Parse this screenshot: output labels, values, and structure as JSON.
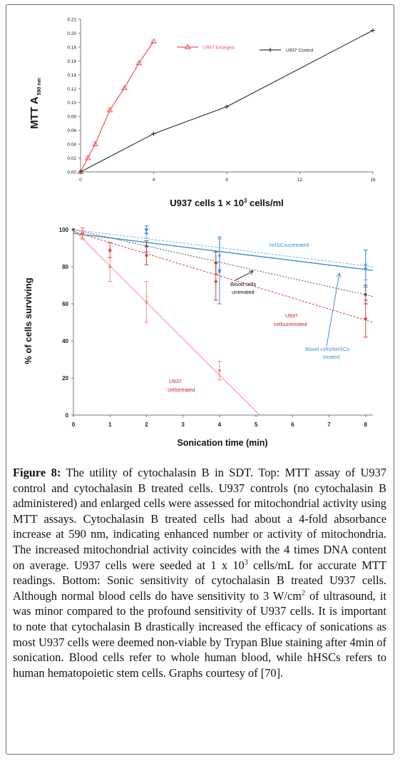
{
  "chart_data": [
    {
      "type": "line",
      "title": "",
      "xlabel": "U937 cells 1 × 10",
      "xlabel_sup": "3",
      "xlabel_tail": " cells/ml",
      "ylabel": "MTT A",
      "ylabel_sub": "590 nm",
      "xlim": [
        0,
        16
      ],
      "ylim": [
        0,
        0.22
      ],
      "x_ticks": [
        "0",
        "4",
        "8",
        "12",
        "16"
      ],
      "y_ticks": [
        "0.00",
        "0.02",
        "0.04",
        "0.06",
        "0.08",
        "0.10",
        "0.12",
        "0.14",
        "0.16",
        "0.18",
        "0.20",
        "0.22"
      ],
      "legend_position": "top-right",
      "series": [
        {
          "name": "U937 Enlarged",
          "color": "#f0525c",
          "marker": "triangle",
          "x": [
            0,
            0.4,
            0.8,
            1.6,
            2.4,
            3.2,
            4.0
          ],
          "y": [
            0.0,
            0.02,
            0.04,
            0.089,
            0.121,
            0.157,
            0.188
          ]
        },
        {
          "name": "U937 Control",
          "color": "#3a3a3a",
          "marker": "plus",
          "x": [
            0,
            4,
            8,
            16
          ],
          "y": [
            0.0,
            0.055,
            0.094,
            0.204
          ]
        }
      ]
    },
    {
      "type": "scatter",
      "title": "",
      "xlabel": "Sonication time (min)",
      "ylabel": "% of cells surviving",
      "xlim": [
        0,
        8.2
      ],
      "ylim": [
        0,
        100
      ],
      "x_ticks": [
        "0",
        "1",
        "2",
        "3",
        "4",
        "5",
        "6",
        "7",
        "8"
      ],
      "y_ticks": [
        "0",
        "20",
        "40",
        "60",
        "80",
        "100"
      ],
      "series": [
        {
          "name": "hHSCsuntreated",
          "color": "#7aaee6",
          "points": [
            {
              "x": 0,
              "y": 100,
              "err": 0
            },
            {
              "x": 2,
              "y": 98,
              "err": 2.5
            },
            {
              "x": 4,
              "y": 86,
              "err": 9
            },
            {
              "x": 8,
              "y": 81,
              "err": 8
            }
          ],
          "trend": [
            [
              0,
              100
            ],
            [
              8.2,
              80
            ]
          ]
        },
        {
          "name": "Blood cells/hHSCs treated",
          "color": "#3f8fdc",
          "points": [
            {
              "x": 0,
              "y": 100,
              "err": 0
            },
            {
              "x": 2,
              "y": 100,
              "err": 2
            },
            {
              "x": 4,
              "y": 78,
              "err": 18
            },
            {
              "x": 8,
              "y": 79,
              "err": 10
            }
          ],
          "trend": [
            [
              0,
              98
            ],
            [
              8.2,
              78
            ]
          ]
        },
        {
          "name": "Blood cells untreated",
          "color": "#555555",
          "points": [
            {
              "x": 0,
              "y": 100,
              "err": 0
            },
            {
              "x": 2,
              "y": 91,
              "err": 3
            },
            {
              "x": 3.9,
              "y": 82,
              "err": 6
            },
            {
              "x": 8,
              "y": 65,
              "err": 5
            }
          ],
          "trend": [
            [
              0,
              100
            ],
            [
              8.2,
              64
            ]
          ]
        },
        {
          "name": "U937 cellsuntreated",
          "color": "#e23a3a",
          "points": [
            {
              "x": 0.25,
              "y": 98,
              "err": 3
            },
            {
              "x": 1,
              "y": 89,
              "err": 4
            },
            {
              "x": 2,
              "y": 86,
              "err": 5
            },
            {
              "x": 3.9,
              "y": 72,
              "err": 10
            },
            {
              "x": 8,
              "y": 52,
              "err": 10
            }
          ],
          "trend": [
            [
              0,
              99
            ],
            [
              8.2,
              50
            ]
          ]
        },
        {
          "name": "U937 cellstreated",
          "color": "#f58a8a",
          "points": [
            {
              "x": 0.25,
              "y": 99,
              "err": 2
            },
            {
              "x": 1,
              "y": 80,
              "err": 8
            },
            {
              "x": 2,
              "y": 61,
              "err": 11
            },
            {
              "x": 4,
              "y": 24,
              "err": 5
            }
          ],
          "trend": [
            [
              0,
              100
            ],
            [
              5.1,
              0
            ]
          ]
        }
      ],
      "annotations": [
        {
          "text": "hHSCsuntreated",
          "color": "#3f8fdc"
        },
        {
          "text": "Blood cells",
          "color": "#111111"
        },
        {
          "text": "untreated",
          "color": "#111111"
        },
        {
          "text": "U937",
          "color": "#cc1f1f"
        },
        {
          "text": "cellsuntreated",
          "color": "#cc1f1f"
        },
        {
          "text": "Blood cells/hHSCs",
          "color": "#3f8fdc"
        },
        {
          "text": "treated",
          "color": "#3f8fdc"
        },
        {
          "text": "U937",
          "color": "#cc1f1f"
        },
        {
          "text": "cellstreated",
          "color": "#cc1f1f"
        }
      ]
    }
  ],
  "caption": {
    "label": "Figure 8:",
    "part1": " The utility of cytochalasin B in SDT. Top: MTT assay of U937 control and cytochalasin B treated cells. U937 controls (no cytochalasin B administered) and enlarged cells were assessed for mitochondrial activity using MTT assays. Cytochalasin B treated cells had about a 4-fold absorbance increase at 590 nm, indicating enhanced number or activity of mitochondria. The increased mitochondrial activity coincides with the 4 times DNA content on average. U937 cells were seeded at 1 x 10",
    "sup1": "3",
    "part2": " cells/mL for accurate MTT readings. Bottom: Sonic sensitivity of cytochalasin B treated U937 cells. Although normal blood cells do have sensitivity to 3 W/cm",
    "sup2": "2",
    "part3": " of ultrasound, it was minor compared to the profound sensitivity of U937 cells. It is important to note that cytochalasin B drastically increased the efficacy of sonications as most U937 cells were deemed non-viable by Trypan Blue staining after 4min of sonication. Blood cells refer to whole human blood, while hHSCs refers to human hematopoietic stem cells. Graphs courtesy of [70]."
  }
}
